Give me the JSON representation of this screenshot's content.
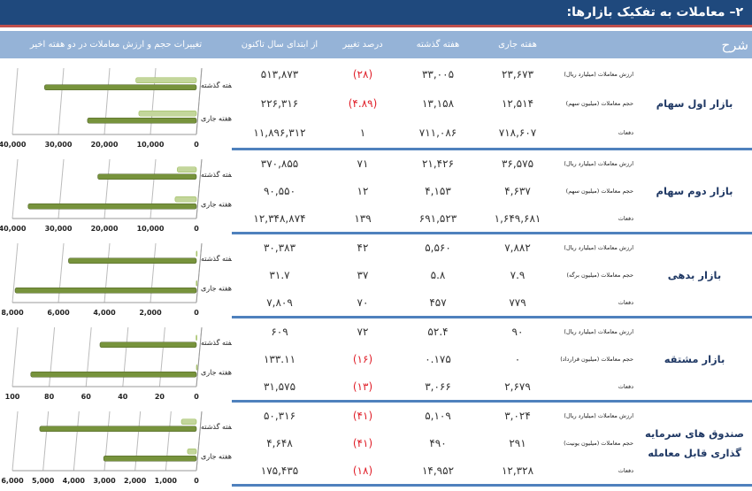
{
  "title": "۲– معاملات به تفکیک بازارها:",
  "header": {
    "desc": "شرح",
    "current": "هفته جاری",
    "last": "هفته گذشته",
    "pct": "درصد تغییر",
    "ytd": "از ابتدای سال تاکنون",
    "chart": "تغییرات حجم و ارزش معاملات در دو هفته اخیر"
  },
  "sections": [
    {
      "label": "بازار اول سهام",
      "rows": [
        {
          "metric": "ارزش معاملات (میلیارد ریال)",
          "current": "۲۳,۶۷۳",
          "last": "۳۳,۰۰۵",
          "pct": "(۲۸)",
          "ytd": "۵۱۳,۸۷۳"
        },
        {
          "metric": "حجم معاملات (میلیون سهم)",
          "current": "۱۲,۵۱۴",
          "last": "۱۳,۱۵۸",
          "pct": "(۴.۸۹)",
          "ytd": "۲۲۶,۳۱۶"
        },
        {
          "metric": "دفعات",
          "current": "۷۱۸,۶۰۷",
          "last": "۷۱۱,۰۸۶",
          "pct": "۱",
          "ytd": "۱۱,۸۹۶,۳۱۲"
        }
      ]
    },
    {
      "label": "بازار دوم سهام",
      "rows": [
        {
          "metric": "ارزش معاملات (میلیارد ریال)",
          "current": "۳۶,۵۷۵",
          "last": "۲۱,۴۲۶",
          "pct": "۷۱",
          "ytd": "۳۷۰,۸۵۵"
        },
        {
          "metric": "حجم معاملات (میلیون سهم)",
          "current": "۴,۶۳۷",
          "last": "۴,۱۵۳",
          "pct": "۱۲",
          "ytd": "۹۰,۵۵۰"
        },
        {
          "metric": "دفعات",
          "current": "۱,۶۴۹,۶۸۱",
          "last": "۶۹۱,۵۲۳",
          "pct": "۱۳۹",
          "ytd": "۱۲,۳۴۸,۸۷۴"
        }
      ]
    },
    {
      "label": "بازار بدهی",
      "rows": [
        {
          "metric": "ارزش معاملات (میلیارد ریال)",
          "current": "۷,۸۸۲",
          "last": "۵,۵۶۰",
          "pct": "۴۲",
          "ytd": "۳۰,۳۸۳"
        },
        {
          "metric": "حجم معاملات (میلیون برگه)",
          "current": "۷.۹",
          "last": "۵.۸",
          "pct": "۳۷",
          "ytd": "۳۱.۷"
        },
        {
          "metric": "دفعات",
          "current": "۷۷۹",
          "last": "۴۵۷",
          "pct": "۷۰",
          "ytd": "۷,۸۰۹"
        }
      ]
    },
    {
      "label": "بازار مشتقه",
      "rows": [
        {
          "metric": "ارزش معاملات (میلیارد ریال)",
          "current": "۹۰",
          "last": "۵۲.۴",
          "pct": "۷۲",
          "ytd": "۶۰۹"
        },
        {
          "metric": "حجم معاملات (میلیون قرارداد)",
          "current": "۰",
          "last": "۰.۱۷۵",
          "pct": "(۱۶)",
          "ytd": "۱۳۳.۱۱"
        },
        {
          "metric": "دفعات",
          "current": "۲,۶۷۹",
          "last": "۳,۰۶۶",
          "pct": "(۱۳)",
          "ytd": "۳۱,۵۷۵"
        }
      ]
    },
    {
      "label": "صندوق های سرمایه گذاری قابل معامله",
      "rows": [
        {
          "metric": "ارزش معاملات (میلیارد ریال)",
          "current": "۳,۰۲۴",
          "last": "۵,۱۰۹",
          "pct": "(۴۱)",
          "ytd": "۵۰,۳۱۶"
        },
        {
          "metric": "حجم معاملات (میلیون یونیت)",
          "current": "۲۹۱",
          "last": "۴۹۰",
          "pct": "(۴۱)",
          "ytd": "۴,۶۴۸"
        },
        {
          "metric": "دفعات",
          "current": "۱۲,۳۲۸",
          "last": "۱۴,۹۵۲",
          "pct": "(۱۸)",
          "ytd": "۱۷۵,۴۳۵"
        }
      ]
    }
  ],
  "colors": {
    "title_bg": "#1f497d",
    "header_bg": "#95b3d7",
    "bar_value": "#77933c",
    "bar_volume": "#c3d69b",
    "negative": "#e0202a"
  },
  "chart_data": [
    {
      "type": "bar",
      "categories": [
        "هفته گذشته",
        "هفته جاری"
      ],
      "series": [
        {
          "name": "حجم",
          "values": [
            13158,
            12514
          ]
        },
        {
          "name": "ارزش",
          "values": [
            33005,
            23673
          ]
        }
      ],
      "xlim": [
        0,
        40000
      ],
      "ticks": [
        "40,000",
        "30,000",
        "20,000",
        "10,000",
        "0"
      ]
    },
    {
      "type": "bar",
      "categories": [
        "هفته گذشته",
        "هفته جاری"
      ],
      "series": [
        {
          "name": "حجم",
          "values": [
            4153,
            4637
          ]
        },
        {
          "name": "ارزش",
          "values": [
            21426,
            36575
          ]
        }
      ],
      "xlim": [
        0,
        40000
      ],
      "ticks": [
        "40,000",
        "30,000",
        "20,000",
        "10,000",
        "0"
      ]
    },
    {
      "type": "bar",
      "categories": [
        "هفته گذشته",
        "هفته جاری"
      ],
      "series": [
        {
          "name": "حجم",
          "values": [
            5.8,
            7.9
          ]
        },
        {
          "name": "ارزش",
          "values": [
            5560,
            7882
          ]
        }
      ],
      "xlim": [
        0,
        8000
      ],
      "ticks": [
        "8,000",
        "6,000",
        "4,000",
        "2,000",
        "0"
      ]
    },
    {
      "type": "bar",
      "categories": [
        "هفته گذشته",
        "هفته جاری"
      ],
      "series": [
        {
          "name": "حجم",
          "values": [
            0.175,
            0
          ]
        },
        {
          "name": "ارزش",
          "values": [
            52.4,
            90
          ]
        }
      ],
      "xlim": [
        0,
        100
      ],
      "ticks": [
        "100",
        "80",
        "60",
        "40",
        "20",
        "0"
      ]
    },
    {
      "type": "bar",
      "categories": [
        "هفته گذشته",
        "هفته جاری"
      ],
      "series": [
        {
          "name": "حجم",
          "values": [
            490,
            291
          ]
        },
        {
          "name": "ارزش",
          "values": [
            5109,
            3024
          ]
        }
      ],
      "xlim": [
        0,
        6000
      ],
      "ticks": [
        "6,000",
        "5,000",
        "4,000",
        "3,000",
        "2,000",
        "1,000",
        "0"
      ]
    }
  ]
}
